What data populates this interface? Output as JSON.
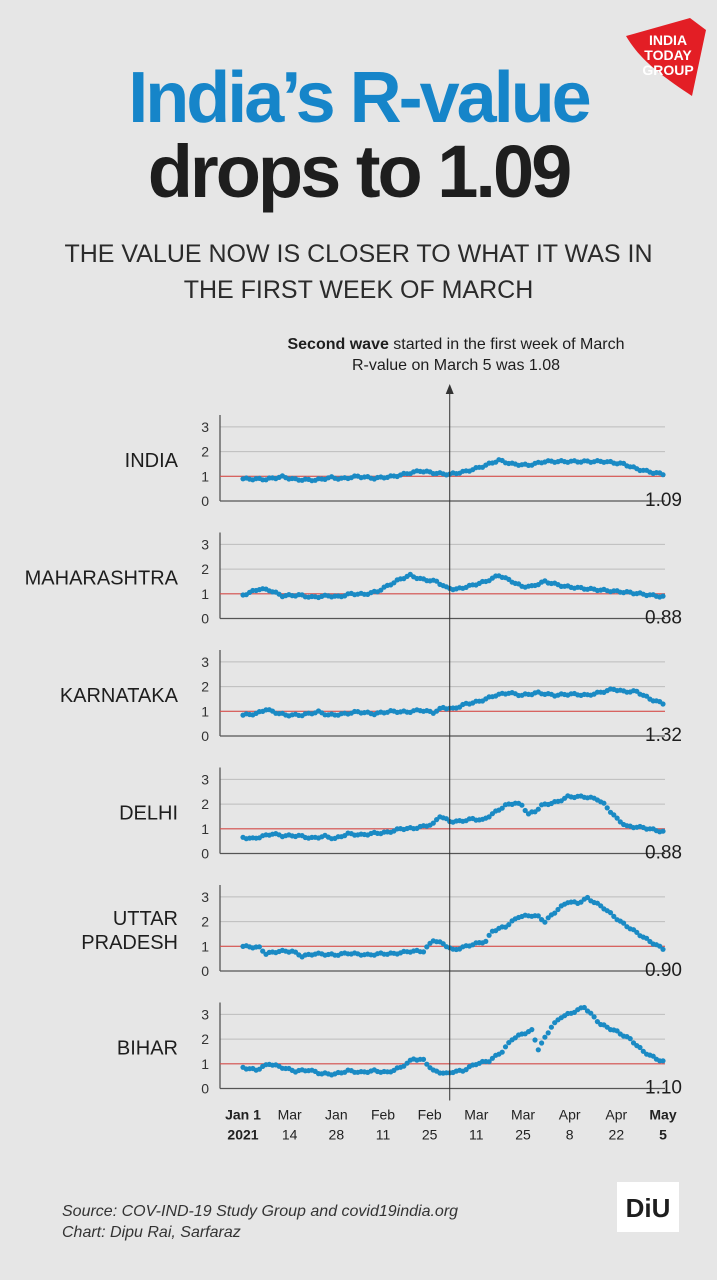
{
  "brand": {
    "logo_lines": [
      "INDIA",
      "TODAY",
      "GROUP"
    ],
    "logo_color": "#e31e25",
    "footer_logo": "DiU"
  },
  "title": {
    "line1": "India’s R-value",
    "line2": "drops to 1.09"
  },
  "subtitle": {
    "line1": "THE VALUE NOW IS CLOSER TO WHAT IT WAS IN",
    "line2": "THE FIRST WEEK OF MARCH"
  },
  "annotation": {
    "bold": "Second wave",
    "rest": " started in the first week of March",
    "line2": "R-value on March 5 was 1.08"
  },
  "source": {
    "line1": "Source: COV-IND-19 Study Group and covid19india.org",
    "line2": "Chart: Dipu Rai, Sarfaraz"
  },
  "colors": {
    "accent_blue": "#1685c9",
    "dot": "#1a8ac4",
    "reference_line": "#d9534f",
    "background": "#e6e6e6"
  },
  "chart_data": {
    "type": "scatter",
    "x_ticks": [
      {
        "top": "Jan 1",
        "bottom": "2021",
        "bold": true
      },
      {
        "top": "Mar",
        "bottom": "14",
        "bold": false
      },
      {
        "top": "Jan",
        "bottom": "28",
        "bold": false
      },
      {
        "top": "Feb",
        "bottom": "11",
        "bold": false
      },
      {
        "top": "Feb",
        "bottom": "25",
        "bold": false
      },
      {
        "top": "Mar",
        "bottom": "11",
        "bold": false
      },
      {
        "top": "Mar",
        "bottom": "25",
        "bold": false
      },
      {
        "top": "Apr",
        "bottom": "8",
        "bold": false
      },
      {
        "top": "Apr",
        "bottom": "22",
        "bold": false
      },
      {
        "top": "May",
        "bottom": "5",
        "bold": true
      }
    ],
    "y_ticks": [
      0,
      1,
      2,
      3
    ],
    "ylim": [
      0,
      3.4
    ],
    "reference_value": 1,
    "marker_day": 63,
    "panels": [
      {
        "label": [
          "INDIA"
        ],
        "final": "1.09",
        "keys": [
          [
            0,
            0.9
          ],
          [
            7,
            0.88
          ],
          [
            12,
            0.98
          ],
          [
            16,
            0.87
          ],
          [
            22,
            0.85
          ],
          [
            27,
            0.95
          ],
          [
            30,
            0.9
          ],
          [
            35,
            1.0
          ],
          [
            40,
            0.92
          ],
          [
            46,
            1.0
          ],
          [
            54,
            1.22
          ],
          [
            59,
            1.12
          ],
          [
            63,
            1.08
          ],
          [
            68,
            1.2
          ],
          [
            73,
            1.4
          ],
          [
            78,
            1.65
          ],
          [
            82,
            1.5
          ],
          [
            87,
            1.45
          ],
          [
            92,
            1.6
          ],
          [
            100,
            1.6
          ],
          [
            110,
            1.6
          ],
          [
            116,
            1.5
          ],
          [
            120,
            1.3
          ],
          [
            125,
            1.15
          ],
          [
            128,
            1.09
          ]
        ]
      },
      {
        "label": [
          "MAHARASHTRA"
        ],
        "final": "0.88",
        "keys": [
          [
            0,
            0.95
          ],
          [
            5,
            1.2
          ],
          [
            8,
            1.15
          ],
          [
            12,
            0.92
          ],
          [
            17,
            0.95
          ],
          [
            21,
            0.86
          ],
          [
            26,
            0.92
          ],
          [
            29,
            0.88
          ],
          [
            33,
            1.0
          ],
          [
            37,
            0.98
          ],
          [
            41,
            1.1
          ],
          [
            44,
            1.32
          ],
          [
            48,
            1.6
          ],
          [
            51,
            1.75
          ],
          [
            54,
            1.6
          ],
          [
            59,
            1.5
          ],
          [
            62,
            1.25
          ],
          [
            65,
            1.18
          ],
          [
            70,
            1.35
          ],
          [
            74,
            1.5
          ],
          [
            78,
            1.75
          ],
          [
            82,
            1.5
          ],
          [
            85,
            1.3
          ],
          [
            88,
            1.3
          ],
          [
            92,
            1.5
          ],
          [
            98,
            1.3
          ],
          [
            105,
            1.2
          ],
          [
            112,
            1.12
          ],
          [
            118,
            1.05
          ],
          [
            124,
            0.95
          ],
          [
            128,
            0.88
          ]
        ]
      },
      {
        "label": [
          "KARNATAKA"
        ],
        "final": "1.32",
        "keys": [
          [
            0,
            0.85
          ],
          [
            4,
            0.9
          ],
          [
            7,
            1.08
          ],
          [
            10,
            0.95
          ],
          [
            13,
            0.85
          ],
          [
            18,
            0.85
          ],
          [
            23,
            0.98
          ],
          [
            26,
            0.85
          ],
          [
            30,
            0.88
          ],
          [
            35,
            0.98
          ],
          [
            40,
            0.9
          ],
          [
            45,
            1.0
          ],
          [
            50,
            0.97
          ],
          [
            54,
            1.05
          ],
          [
            58,
            0.95
          ],
          [
            61,
            1.15
          ],
          [
            64,
            1.1
          ],
          [
            68,
            1.3
          ],
          [
            72,
            1.4
          ],
          [
            77,
            1.65
          ],
          [
            81,
            1.75
          ],
          [
            85,
            1.65
          ],
          [
            90,
            1.75
          ],
          [
            95,
            1.65
          ],
          [
            100,
            1.7
          ],
          [
            105,
            1.65
          ],
          [
            110,
            1.8
          ],
          [
            113,
            1.9
          ],
          [
            116,
            1.8
          ],
          [
            120,
            1.8
          ],
          [
            124,
            1.5
          ],
          [
            128,
            1.32
          ]
        ]
      },
      {
        "label": [
          "DELHI"
        ],
        "final": "0.88",
        "keys": [
          [
            0,
            0.65
          ],
          [
            3,
            0.6
          ],
          [
            6,
            0.7
          ],
          [
            9,
            0.8
          ],
          [
            12,
            0.72
          ],
          [
            17,
            0.72
          ],
          [
            21,
            0.62
          ],
          [
            25,
            0.7
          ],
          [
            28,
            0.6
          ],
          [
            32,
            0.8
          ],
          [
            36,
            0.75
          ],
          [
            40,
            0.82
          ],
          [
            44,
            0.85
          ],
          [
            48,
            1.0
          ],
          [
            52,
            1.02
          ],
          [
            55,
            1.1
          ],
          [
            58,
            1.2
          ],
          [
            60,
            1.52
          ],
          [
            63,
            1.3
          ],
          [
            66,
            1.3
          ],
          [
            70,
            1.4
          ],
          [
            73,
            1.35
          ],
          [
            76,
            1.6
          ],
          [
            80,
            1.95
          ],
          [
            83,
            2.05
          ],
          [
            85,
            1.95
          ],
          [
            87,
            1.6
          ],
          [
            89,
            1.7
          ],
          [
            91,
            1.95
          ],
          [
            96,
            2.1
          ],
          [
            99,
            2.3
          ],
          [
            104,
            2.3
          ],
          [
            108,
            2.2
          ],
          [
            110,
            2.0
          ],
          [
            114,
            1.4
          ],
          [
            117,
            1.1
          ],
          [
            122,
            1.05
          ],
          [
            128,
            0.88
          ]
        ]
      },
      {
        "label": [
          "UTTAR",
          "PRADESH"
        ],
        "final": "0.90",
        "keys": [
          [
            0,
            1.0
          ],
          [
            5,
            0.95
          ],
          [
            7,
            0.7
          ],
          [
            11,
            0.8
          ],
          [
            15,
            0.8
          ],
          [
            18,
            0.6
          ],
          [
            22,
            0.7
          ],
          [
            28,
            0.65
          ],
          [
            32,
            0.72
          ],
          [
            38,
            0.65
          ],
          [
            42,
            0.7
          ],
          [
            46,
            0.7
          ],
          [
            51,
            0.8
          ],
          [
            55,
            0.8
          ],
          [
            58,
            1.25
          ],
          [
            61,
            1.1
          ],
          [
            64,
            0.85
          ],
          [
            66,
            0.92
          ],
          [
            70,
            1.08
          ],
          [
            74,
            1.2
          ],
          [
            76,
            1.62
          ],
          [
            80,
            1.8
          ],
          [
            84,
            2.2
          ],
          [
            88,
            2.25
          ],
          [
            90,
            2.2
          ],
          [
            92,
            2.0
          ],
          [
            96,
            2.5
          ],
          [
            99,
            2.8
          ],
          [
            102,
            2.75
          ],
          [
            105,
            2.95
          ],
          [
            110,
            2.55
          ],
          [
            115,
            2.0
          ],
          [
            120,
            1.55
          ],
          [
            124,
            1.2
          ],
          [
            128,
            0.9
          ]
        ]
      },
      {
        "label": [
          "BIHAR"
        ],
        "final": "1.10",
        "keys": [
          [
            0,
            0.85
          ],
          [
            4,
            0.75
          ],
          [
            8,
            1.0
          ],
          [
            12,
            0.85
          ],
          [
            16,
            0.7
          ],
          [
            20,
            0.75
          ],
          [
            24,
            0.6
          ],
          [
            28,
            0.58
          ],
          [
            32,
            0.72
          ],
          [
            36,
            0.65
          ],
          [
            40,
            0.72
          ],
          [
            44,
            0.65
          ],
          [
            48,
            0.85
          ],
          [
            52,
            1.2
          ],
          [
            55,
            1.15
          ],
          [
            58,
            0.72
          ],
          [
            62,
            0.6
          ],
          [
            64,
            0.68
          ],
          [
            67,
            0.72
          ],
          [
            71,
            1.0
          ],
          [
            75,
            1.12
          ],
          [
            79,
            1.5
          ],
          [
            82,
            2.0
          ],
          [
            85,
            2.2
          ],
          [
            88,
            2.35
          ],
          [
            90,
            1.6
          ],
          [
            94,
            2.5
          ],
          [
            97,
            2.9
          ],
          [
            100,
            3.05
          ],
          [
            104,
            3.3
          ],
          [
            109,
            2.6
          ],
          [
            114,
            2.3
          ],
          [
            118,
            2.0
          ],
          [
            122,
            1.5
          ],
          [
            126,
            1.2
          ],
          [
            128,
            1.1
          ]
        ]
      }
    ]
  }
}
